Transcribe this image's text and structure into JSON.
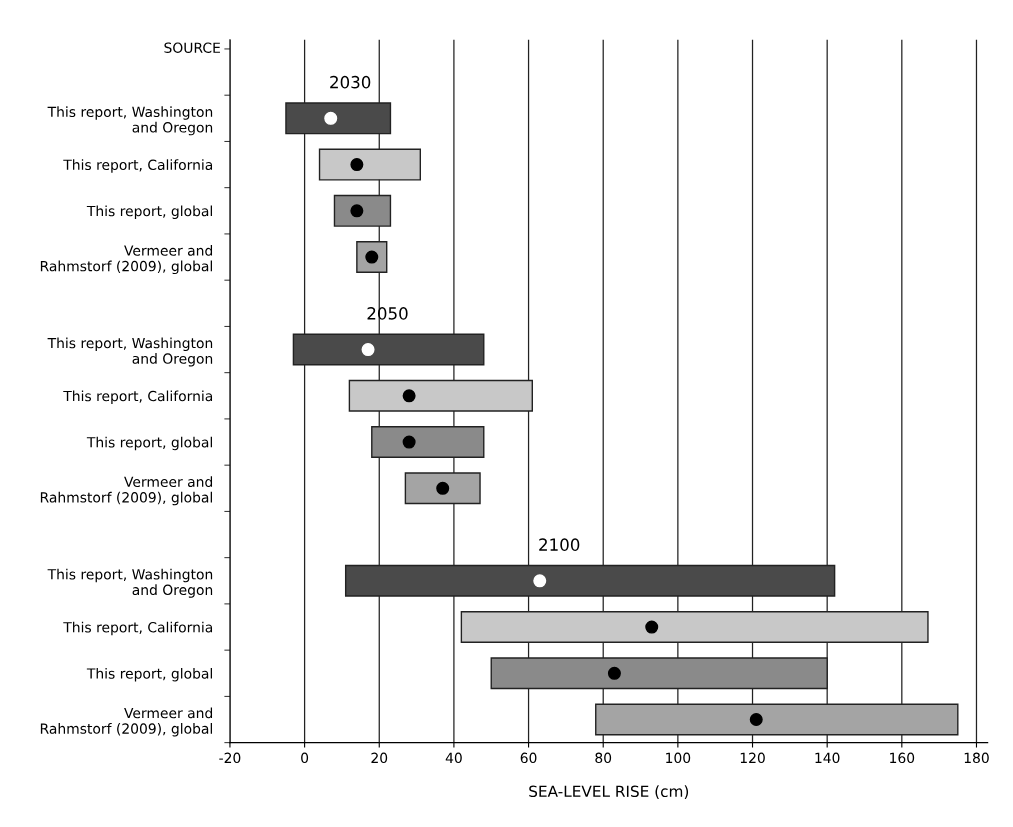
{
  "chart_data": {
    "type": "bar",
    "orientation": "horizontal",
    "xlabel": "SEA-LEVEL RISE (cm)",
    "ylabel": "SOURCE",
    "categories": [
      "This report, Washington\nand Oregon",
      "This report, California",
      "This report, global",
      "Vermeer and\nRahmstorf (2009), global",
      null,
      "This report, Washington\nand Oregon",
      "This report, California",
      "This report, global",
      "Vermeer and\nRahmstorf (2009), global",
      null,
      "This report, Washington\nand Oregon",
      "This report, California",
      "This report, global",
      "Vermeer and\nRahmstorf (2009), global"
    ],
    "series": [
      {
        "base": [
          -5,
          4,
          8,
          14,
          null,
          -3,
          12,
          18,
          27,
          null,
          11,
          42,
          50,
          78
        ],
        "values": [
          28,
          27,
          15,
          8,
          null,
          51,
          49,
          30,
          20,
          null,
          131,
          125,
          90,
          97
        ],
        "colors": [
          "#4a4a4a",
          "#c8c8c8",
          "#8a8a8a",
          "#a4a4a4",
          null,
          "#4a4a4a",
          "#c8c8c8",
          "#8a8a8a",
          "#a4a4a4",
          null,
          "#4a4a4a",
          "#c8c8c8",
          "#8a8a8a",
          "#a4a4a4"
        ]
      },
      {
        "type": "scatter",
        "values": [
          7,
          14,
          14,
          18,
          null,
          17,
          28,
          28,
          37,
          null,
          63,
          93,
          83,
          121
        ],
        "colors": [
          "#ffffff",
          "#000000",
          "#000000",
          "#000000",
          null,
          "#ffffff",
          "#000000",
          "#000000",
          "#000000",
          null,
          "#ffffff",
          "#000000",
          "#000000",
          "#000000"
        ]
      }
    ],
    "annotations": [
      "2030",
      "2050",
      "2100"
    ],
    "xlim": [
      -20,
      183
    ],
    "xticks": [
      -20,
      0,
      20,
      40,
      60,
      80,
      100,
      120,
      140,
      160,
      180
    ],
    "grid": "x",
    "legend": false
  }
}
